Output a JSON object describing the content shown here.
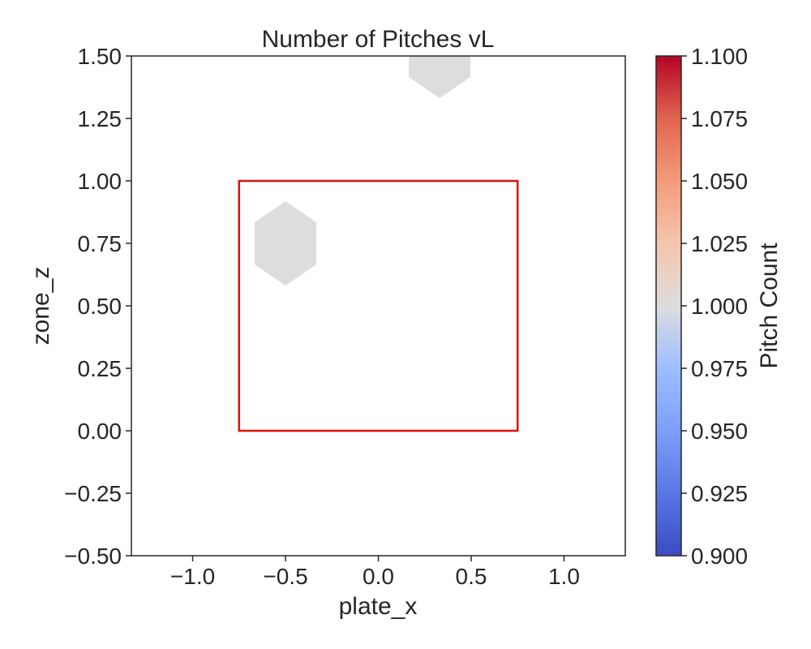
{
  "chart_data": {
    "type": "heatmap",
    "subtype": "hexbin",
    "title": "Number of Pitches vL",
    "xlabel": "plate_x",
    "ylabel": "zone_z",
    "xlim": [
      -1.33,
      1.33
    ],
    "ylim": [
      -0.5,
      1.5
    ],
    "x_ticks": [
      -1.0,
      -0.5,
      0.0,
      0.5,
      1.0
    ],
    "x_tick_labels": [
      "−1.0",
      "−0.5",
      "0.0",
      "0.5",
      "1.0"
    ],
    "y_ticks": [
      -0.5,
      -0.25,
      0.0,
      0.25,
      0.5,
      0.75,
      1.0,
      1.25,
      1.5
    ],
    "y_tick_labels": [
      "−0.50",
      "−0.25",
      "0.00",
      "0.25",
      "0.50",
      "0.75",
      "1.00",
      "1.25",
      "1.50"
    ],
    "hexbins": [
      {
        "x": -0.5,
        "y": 0.75,
        "count": 1
      },
      {
        "x": 0.33,
        "y": 1.5,
        "count": 1
      }
    ],
    "hex_color": "#dddddd",
    "strike_zone": {
      "x": [
        -0.75,
        0.75
      ],
      "y": [
        0.0,
        1.0
      ],
      "color": "#dd1111"
    },
    "colorbar": {
      "label": "Pitch Count",
      "colormap": "coolwarm",
      "range": [
        0.9,
        1.1
      ],
      "ticks": [
        0.9,
        0.925,
        0.95,
        0.975,
        1.0,
        1.025,
        1.05,
        1.075,
        1.1
      ],
      "tick_labels": [
        "0.900",
        "0.925",
        "0.950",
        "0.975",
        "1.000",
        "1.025",
        "1.050",
        "1.075",
        "1.100"
      ]
    },
    "grid": false
  }
}
